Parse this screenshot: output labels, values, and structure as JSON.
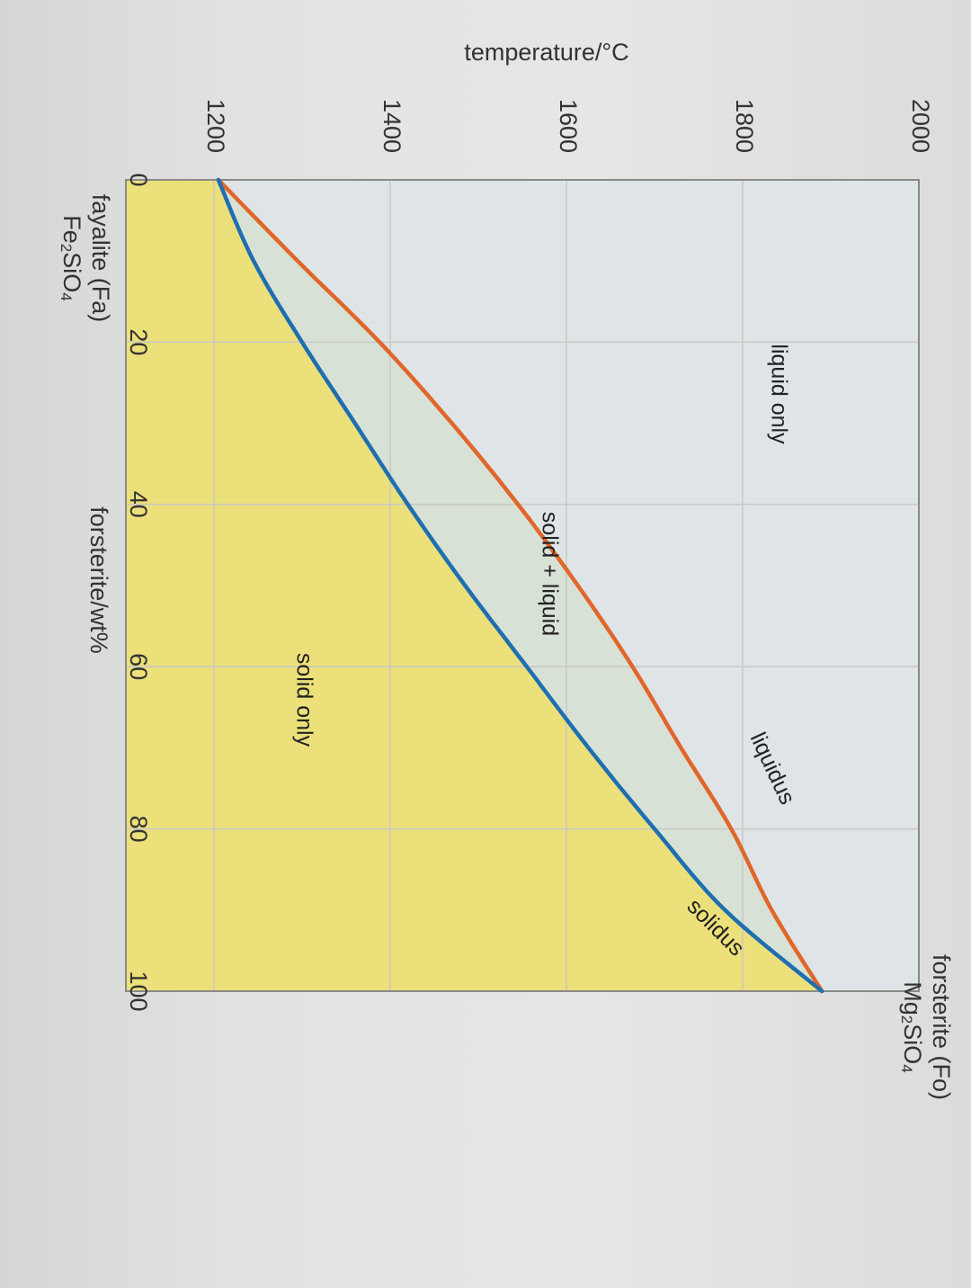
{
  "chart_data": {
    "type": "line",
    "orientation": "rotated 90° clockwise",
    "x_axis": {
      "label": "forsterite/wt%",
      "ticks": [
        0,
        20,
        40,
        60,
        80,
        100
      ],
      "tick_labels": [
        "0",
        "20",
        "40",
        "60",
        "80",
        "100"
      ],
      "range": [
        0,
        100
      ]
    },
    "y_axis": {
      "label": "temperature/°C",
      "ticks": [
        1200,
        1400,
        1600,
        1800,
        2000
      ],
      "tick_labels": [
        "1200",
        "1400",
        "1600",
        "1800",
        "2000"
      ],
      "range": [
        1100,
        2000
      ]
    },
    "series": [
      {
        "name": "liquidus",
        "color": "#e0662a",
        "x": [
          0,
          10,
          20,
          30,
          40,
          50,
          60,
          70,
          80,
          90,
          100
        ],
        "y": [
          1205,
          1295,
          1388,
          1470,
          1545,
          1613,
          1675,
          1730,
          1787,
          1833,
          1890
        ]
      },
      {
        "name": "solidus",
        "color": "#1f6fb0",
        "x": [
          0,
          10,
          20,
          30,
          40,
          50,
          60,
          70,
          80,
          90,
          100
        ],
        "y": [
          1205,
          1245,
          1300,
          1360,
          1420,
          1485,
          1555,
          1625,
          1700,
          1780,
          1890
        ]
      }
    ],
    "regions": {
      "liquid_only": "liquid only",
      "solid_liquid": "solid + liquid",
      "solid_only": "solid only"
    },
    "endpoints": {
      "left_name": "fayalite (Fa)",
      "left_formula": "Fe2SiO4",
      "right_name": "forsterite (Fo)",
      "right_formula": "Mg2SiO4"
    },
    "colors": {
      "liquid_region": "#dfe4e7",
      "two_phase_region": "#d7e1d6",
      "solid_region": "#ece07a",
      "grid": "#c9c9c4"
    },
    "grid": true,
    "legend": "none (curves labelled directly)"
  }
}
